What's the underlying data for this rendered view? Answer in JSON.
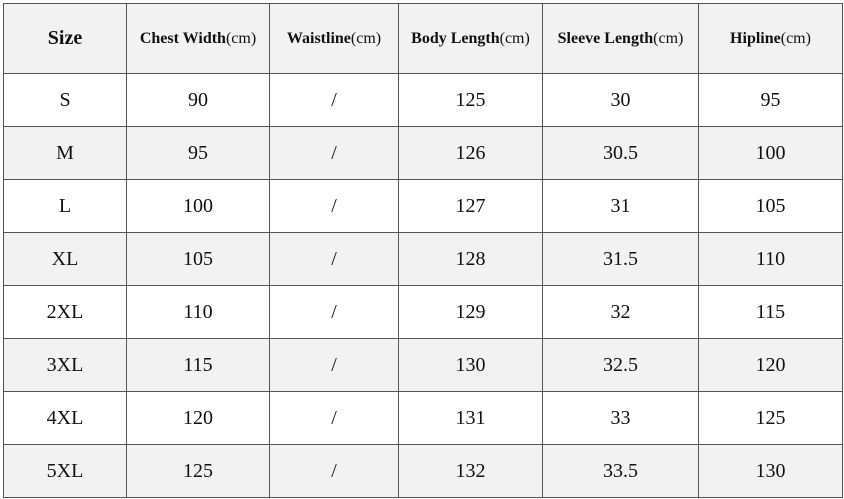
{
  "table": {
    "headers": [
      {
        "name": "Size"
      },
      {
        "name": "Chest Width",
        "unit": "(cm)"
      },
      {
        "name": "Waistline",
        "unit": "(cm)"
      },
      {
        "name": "Body Length",
        "unit": "(cm)"
      },
      {
        "name": "Sleeve Length",
        "unit": "(cm)"
      },
      {
        "name": "Hipline",
        "unit": "(cm)"
      }
    ],
    "rows": [
      [
        "S",
        90,
        "/",
        125,
        30,
        95
      ],
      [
        "M",
        95,
        "/",
        126,
        30.5,
        100
      ],
      [
        "L",
        100,
        "/",
        127,
        31,
        105
      ],
      [
        "XL",
        105,
        "/",
        128,
        31.5,
        110
      ],
      [
        "2XL",
        110,
        "/",
        129,
        32,
        115
      ],
      [
        "3XL",
        115,
        "/",
        130,
        32.5,
        120
      ],
      [
        "4XL",
        120,
        "/",
        131,
        33,
        125
      ],
      [
        "5XL",
        125,
        "/",
        132,
        33.5,
        130
      ]
    ]
  }
}
